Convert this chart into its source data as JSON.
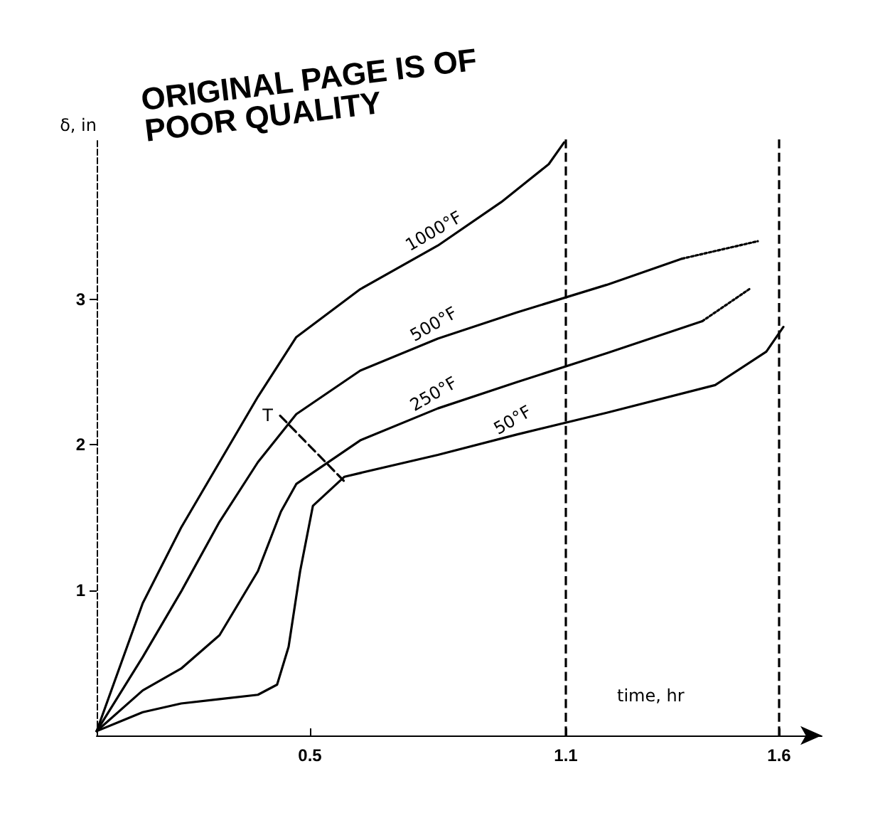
{
  "chart_data": {
    "type": "line",
    "xlabel": "time, hr",
    "ylabel": "δ, in",
    "annotations": [
      "ORIGINAL PAGE IS OF POOR QUALITY"
    ],
    "xlim": [
      0,
      1.7
    ],
    "ylim": [
      0,
      4.1
    ],
    "xticks": [
      0.5,
      1.1,
      1.6
    ],
    "yticks": [
      1,
      2,
      3
    ],
    "grid": false,
    "legend": false,
    "marker": "none",
    "line_style": "solid",
    "series": [
      {
        "name": "1000°F",
        "color": "#000000",
        "x": [
          0,
          0.108,
          0.198,
          0.288,
          0.378,
          0.468,
          0.618,
          0.8,
          0.949,
          1.06,
          1.096
        ],
        "values": [
          0.03,
          0.91,
          1.43,
          1.88,
          2.33,
          2.74,
          3.07,
          3.37,
          3.67,
          3.93,
          4.08
        ]
      },
      {
        "name": "500°F",
        "color": "#000000",
        "x": [
          0,
          0.108,
          0.198,
          0.288,
          0.378,
          0.468,
          0.618,
          0.8,
          0.985,
          1.196,
          1.373
        ],
        "values": [
          0.03,
          0.54,
          0.99,
          1.47,
          1.88,
          2.21,
          2.51,
          2.73,
          2.91,
          3.1,
          3.28
        ]
      },
      {
        "color": "#000000",
        "line_style": "dotted",
        "x": [
          1.373,
          1.55
        ],
        "values": [
          3.28,
          3.4
        ]
      },
      {
        "name": "250°F",
        "color": "#000000",
        "x": [
          0,
          0.108,
          0.198,
          0.288,
          0.378,
          0.432,
          0.468,
          0.618,
          0.8,
          0.985,
          1.196,
          1.42
        ],
        "values": [
          0.03,
          0.31,
          0.46,
          0.69,
          1.13,
          1.54,
          1.73,
          2.03,
          2.25,
          2.43,
          2.63,
          2.85
        ]
      },
      {
        "color": "#000000",
        "line_style": "dotted",
        "x": [
          1.42,
          1.53
        ],
        "values": [
          2.85,
          3.07
        ]
      },
      {
        "name": "50°F",
        "color": "#000000",
        "x": [
          0,
          0.108,
          0.198,
          0.288,
          0.378,
          0.423,
          0.45,
          0.477,
          0.507,
          0.581,
          0.8,
          0.985,
          1.196,
          1.45,
          1.57,
          1.61
        ],
        "values": [
          0.03,
          0.16,
          0.22,
          0.25,
          0.28,
          0.35,
          0.61,
          1.13,
          1.58,
          1.78,
          1.93,
          2.07,
          2.22,
          2.41,
          2.64,
          2.81
        ]
      },
      {
        "name": "T",
        "color": "#000000",
        "line_style": "dashed",
        "x": [
          0.43,
          0.58
        ],
        "values": [
          2.2,
          1.75
        ]
      }
    ],
    "ref_lines": [
      {
        "axis": "x",
        "value": 1.1,
        "line_style": "dashed",
        "color": "#000000"
      },
      {
        "axis": "x",
        "value": 1.6,
        "line_style": "dashed",
        "color": "#000000"
      }
    ]
  }
}
